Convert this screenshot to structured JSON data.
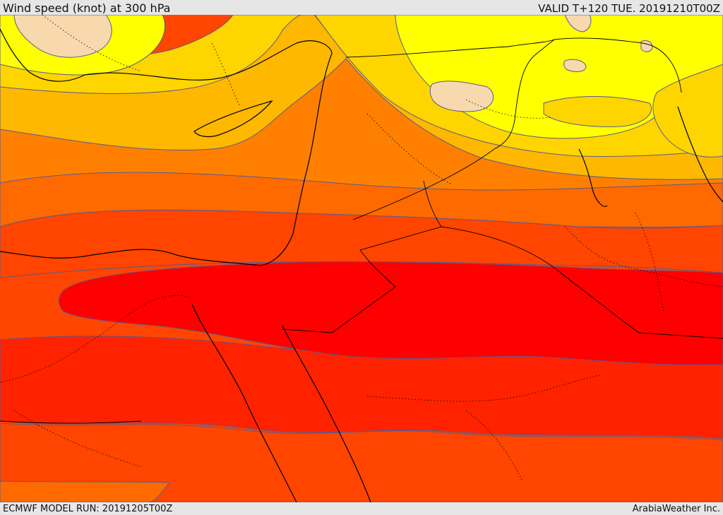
{
  "header": {
    "title": "Wind speed (knot) at 300 hPa",
    "valid": "VALID T+120 TUE. 20191210T00Z"
  },
  "footer": {
    "model_run": "ECMWF MODEL RUN: 20191205T00Z",
    "provider": "ArabiaWeather Inc."
  },
  "colors": {
    "band_light": "#f8d9ad",
    "band_yellow": "#ffff00",
    "band_gold": "#ffd500",
    "band_amber": "#ffb800",
    "band_orange": "#ff8000",
    "band_dark_orange": "#ff6a00",
    "band_red_orange": "#ff4500",
    "band_scarlet": "#ff2200",
    "band_red": "#ff0000",
    "contour": "#5a5a8c",
    "coast": "#000000"
  }
}
